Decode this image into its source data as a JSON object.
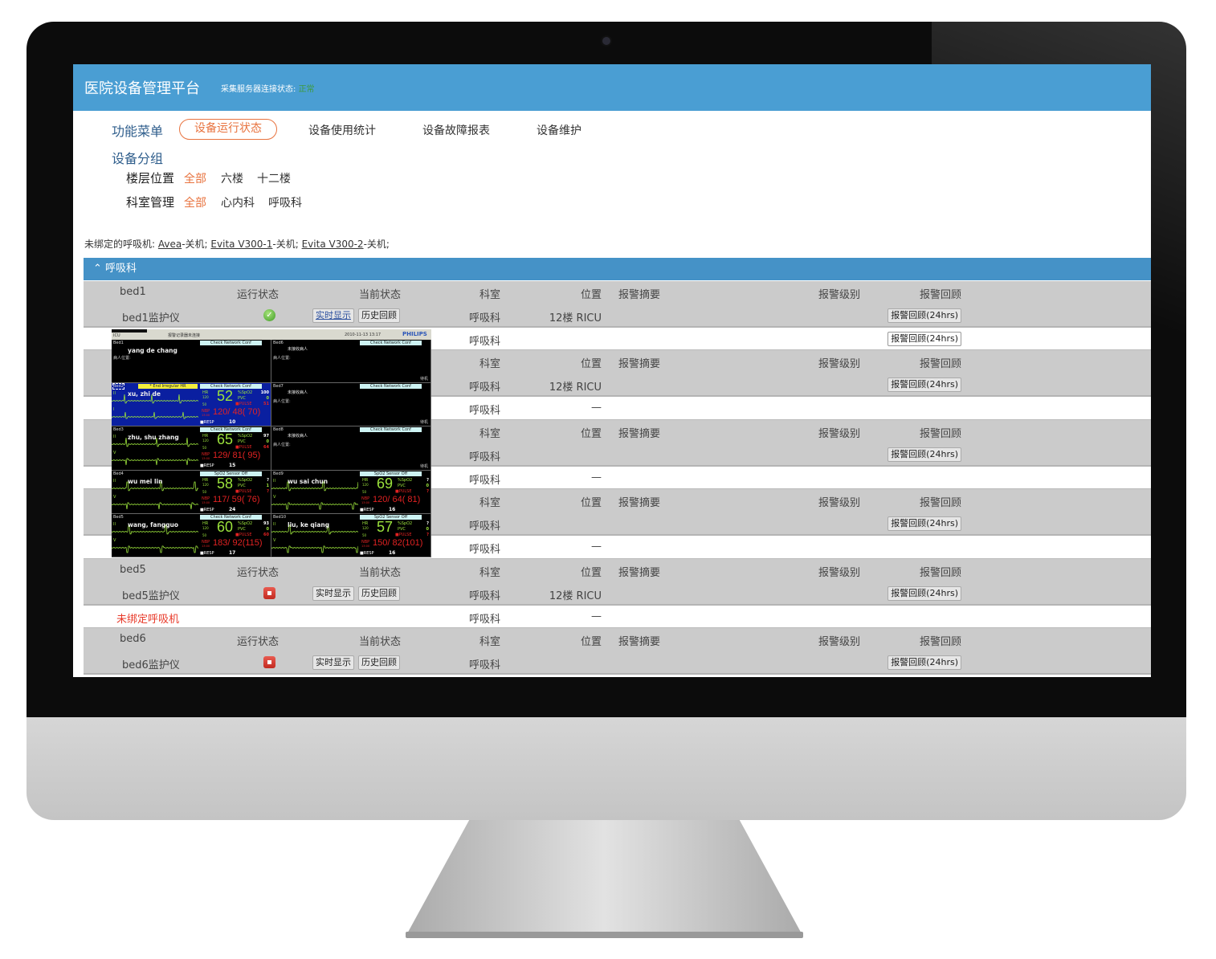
{
  "app": {
    "title": "医院设备管理平台",
    "conn_label": "采集服务器连接状态:",
    "conn_value": "正常",
    "conn_color": "#3d9b3d",
    "brand_color": "#4a9ed3",
    "accent_color": "#e8733f"
  },
  "nav": {
    "menu_label": "功能菜单",
    "items": [
      {
        "label": "设备运行状态",
        "active": true
      },
      {
        "label": "设备使用统计"
      },
      {
        "label": "设备故障报表"
      },
      {
        "label": "设备维护"
      }
    ]
  },
  "groups": {
    "title": "设备分组",
    "floor": {
      "label": "楼层位置",
      "options": [
        "全部",
        "六楼",
        "十二楼"
      ],
      "active": 0
    },
    "dept": {
      "label": "科室管理",
      "options": [
        "全部",
        "心内科",
        "呼吸科"
      ],
      "active": 0
    }
  },
  "unbound": {
    "label": "未绑定的呼吸机:",
    "items": [
      {
        "name": "Avea",
        "state": "-关机;"
      },
      {
        "name": "Evita V300-1",
        "state": "-关机;"
      },
      {
        "name": "Evita V300-2",
        "state": "-关机;"
      }
    ]
  },
  "section": {
    "icon": "chevron-up-icon",
    "title": "呼吸科"
  },
  "table": {
    "headers": {
      "status": "运行状态",
      "current": "当前状态",
      "dept": "科室",
      "loc": "位置",
      "summary": "报警摘要",
      "level": "报警级别",
      "review": "报警回顾"
    },
    "live_label": "实时显示",
    "history_label": "历史回顾",
    "review_btn": "报警回顾(24hrs)",
    "beds": [
      {
        "bed": "bed1",
        "device": "bed1监护仪",
        "status": "ok",
        "live_link": true,
        "dept": "呼吸科",
        "loc": "12楼 RICU",
        "vent": {
          "label": "",
          "dept": "呼吸科",
          "loc": "",
          "review": true
        }
      },
      {
        "bed": "",
        "device": "",
        "status": "",
        "dept": "呼吸科",
        "loc": "12楼 RICU",
        "vent": {
          "label": "",
          "dept": "呼吸科",
          "loc": "—",
          "review": false
        }
      },
      {
        "bed": "",
        "device": "",
        "status": "",
        "dept": "呼吸科",
        "loc": "",
        "vent": {
          "label": "",
          "dept": "呼吸科",
          "loc": "—",
          "review": false
        }
      },
      {
        "bed": "",
        "device": "",
        "status": "",
        "dept": "呼吸科",
        "loc": "",
        "vent": {
          "label": "",
          "dept": "呼吸科",
          "loc": "—",
          "review": false
        }
      },
      {
        "bed": "bed5",
        "device": "bed5监护仪",
        "status": "off",
        "dept": "呼吸科",
        "loc": "12楼 RICU",
        "vent": {
          "label": "未绑定呼吸机",
          "dept": "呼吸科",
          "loc": "—",
          "review": false
        }
      },
      {
        "bed": "bed6",
        "device": "bed6监护仪",
        "status": "off",
        "dept": "呼吸科",
        "loc": ""
      }
    ]
  },
  "monitor": {
    "unit": "ICU",
    "recorder": "报警记录器未连接",
    "datetime": "2010-11-13 13:17",
    "brand": "PHILIPS",
    "hr_label": "HR",
    "hr_hi": "120",
    "hr_lo": "50",
    "spo2_label": "%SpO2",
    "pvc_label": "PVC",
    "pulse_label": "PULSE",
    "nbp_label": "NBP",
    "nbp_time": "13:00",
    "resp_label": "RESP",
    "panels": [
      {
        "bed": "Bed1",
        "name": "yang de chang",
        "loc": "病人位置:",
        "alert": "Check Network Conf"
      },
      {
        "bed": "Bed6",
        "name": "未接收病人",
        "loc": "病人位置:",
        "alert": "Check Network Conf",
        "corner": "待机"
      },
      {
        "bed": "Bed2",
        "banner": "* End Irregular HR",
        "name": "xu, zhi de",
        "alert": "Check Network Conf",
        "leads": [
          "II",
          "I"
        ],
        "hr": "52",
        "spo2": "100",
        "pvc": "0",
        "pulse": "51",
        "nbp": "120/ 48( 70)",
        "resp": "10",
        "highlight": true
      },
      {
        "bed": "Bed7",
        "name": "未接收病人",
        "loc": "病人位置:",
        "alert": "Check Network Conf",
        "corner": "待机"
      },
      {
        "bed": "Bed3",
        "name": "zhu, shu zhang",
        "alert": "Check Network Conf",
        "leads": [
          "II",
          "V"
        ],
        "hr": "65",
        "spo2": "97",
        "pvc": "0",
        "pulse": "64",
        "nbp": "129/ 81( 95)",
        "resp": "15"
      },
      {
        "bed": "Bed8",
        "name": "未接收病人",
        "loc": "病人位置:",
        "alert": "Check Network Conf",
        "corner": "待机"
      },
      {
        "bed": "Bed4",
        "name": "wu mei lin",
        "alert": "SpO2  Sensor Off",
        "leads": [
          "II",
          "V"
        ],
        "hr": "58",
        "spo2": "?",
        "pvc": "1",
        "pulse": "?",
        "nbp": "117/ 59( 76)",
        "resp": "24"
      },
      {
        "bed": "Bed9",
        "name": "wu sai chun",
        "alert": "SpO2  Sensor Off",
        "leads": [
          "II",
          "V"
        ],
        "hr": "69",
        "spo2": "?",
        "pvc": "0",
        "pulse": "?",
        "nbp": "120/ 64( 81)",
        "resp": "16"
      },
      {
        "bed": "Bed5",
        "name": "wang, fangguo",
        "alert": "Check Network Conf",
        "leads": [
          "II",
          "V"
        ],
        "hr": "60",
        "spo2": "93",
        "pvc": "0",
        "pulse": "60",
        "nbp": "183/ 92(115)",
        "resp": "17"
      },
      {
        "bed": "Bed10",
        "name": "liu, ke qiang",
        "alert": "SpO2  Sensor Off",
        "leads": [
          "II",
          "V"
        ],
        "hr": "57",
        "spo2": "?",
        "pvc": "0",
        "pulse": "?",
        "nbp": "150/ 82(101)",
        "resp": "16"
      }
    ]
  }
}
